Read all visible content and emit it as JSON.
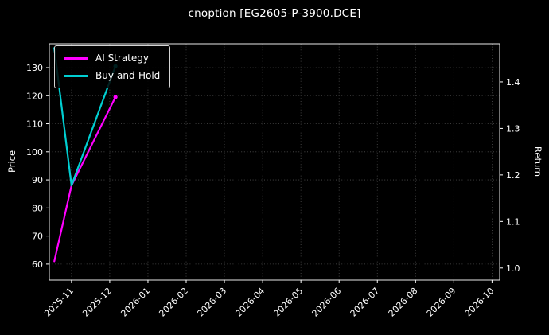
{
  "chart_data": {
    "type": "line",
    "title": "cnoption [EG2605-P-3900.DCE]",
    "ylabel_left": "Price",
    "ylabel_right": "Return",
    "background_color": "#000000",
    "text_color": "#ffffff",
    "grid": true,
    "grid_color": "#4f4f4f",
    "legend_position": "upper left",
    "x_ticks": {
      "values": [
        0,
        1,
        2,
        3,
        4,
        5,
        6,
        7,
        8,
        9,
        10,
        11
      ],
      "labels": [
        "2025-11",
        "2025-12",
        "2026-01",
        "2026-02",
        "2026-03",
        "2026-04",
        "2026-05",
        "2026-06",
        "2026-07",
        "2026-08",
        "2026-09",
        "2026-10"
      ]
    },
    "left_yticks": {
      "values": [
        60,
        70,
        80,
        90,
        100,
        110,
        120,
        130
      ],
      "labels": [
        "60",
        "70",
        "80",
        "90",
        "100",
        "110",
        "120",
        "130"
      ]
    },
    "right_yticks": {
      "values": [
        1.0,
        1.1,
        1.2,
        1.3,
        1.4
      ],
      "labels": [
        "1.0",
        "1.1",
        "1.2",
        "1.3",
        "1.4"
      ]
    },
    "xlim": [
      -0.58,
      11.2
    ],
    "left_ylim": [
      54.3,
      138.5
    ],
    "right_ylim": [
      0.974,
      1.482
    ],
    "series": [
      {
        "name": "AI Strategy",
        "color": "#ff00ff",
        "axis": "left",
        "x": [
          -0.45,
          0.0,
          1.15
        ],
        "y": [
          61,
          88,
          119.5
        ]
      },
      {
        "name": "Buy-and-Hold",
        "color": "#00ced1",
        "axis": "left",
        "x": [
          -0.45,
          0.0,
          1.15
        ],
        "y": [
          137,
          88,
          130.5
        ]
      }
    ]
  }
}
